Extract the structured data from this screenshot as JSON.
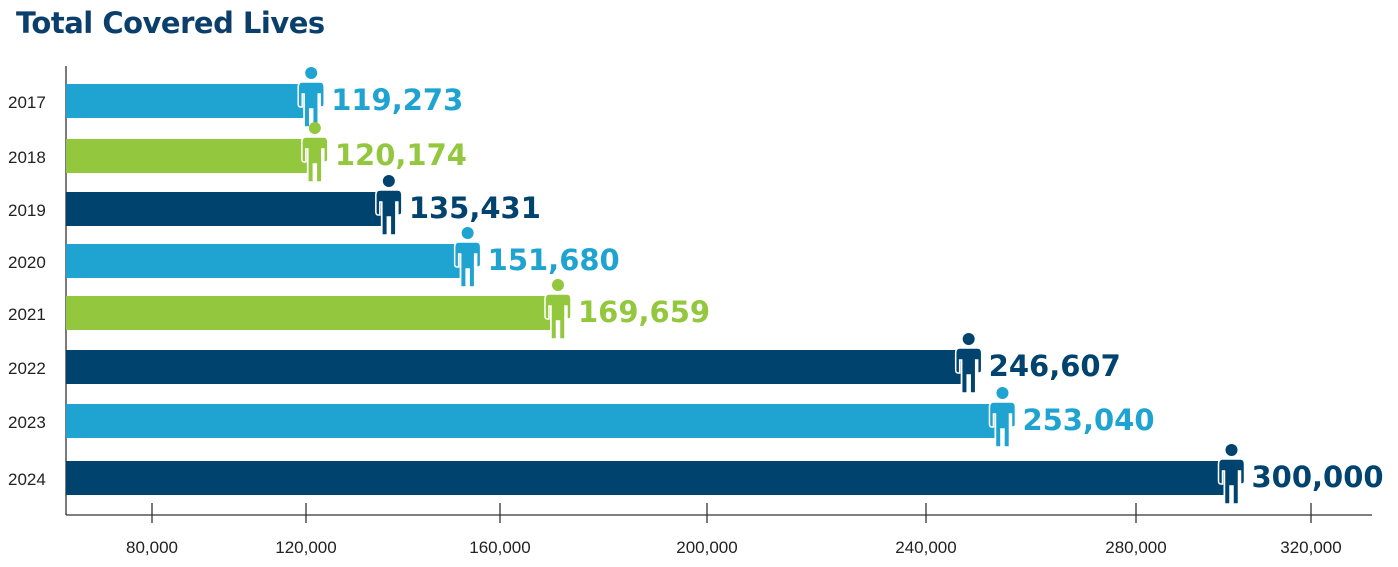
{
  "chart_data": {
    "type": "bar",
    "orientation": "horizontal",
    "title": "Total Covered Lives",
    "categories": [
      "2017",
      "2018",
      "2019",
      "2020",
      "2021",
      "2022",
      "2023",
      "2024"
    ],
    "values": [
      119273,
      120174,
      135431,
      151680,
      169659,
      246607,
      253040,
      300000
    ],
    "data_labels": [
      "119,273",
      "120,174",
      "135,431",
      "151,680",
      "169,659",
      "246,607",
      "253,040",
      "300,000"
    ],
    "bar_colors": [
      "#1fa3d0",
      "#93c83e",
      "#00436e",
      "#1fa3d0",
      "#93c83e",
      "#00436e",
      "#1fa3d0",
      "#00436e"
    ],
    "icon": "person-icon",
    "x_ticks": [
      80000,
      120000,
      160000,
      200000,
      240000,
      280000,
      320000
    ],
    "x_tick_labels": [
      "80,000",
      "120,000",
      "160,000",
      "200,000",
      "240,000",
      "280,000",
      "320,000"
    ],
    "xlim": [
      60000,
      330000
    ],
    "grid": false,
    "legend": "none",
    "xlabel": "",
    "ylabel": ""
  }
}
